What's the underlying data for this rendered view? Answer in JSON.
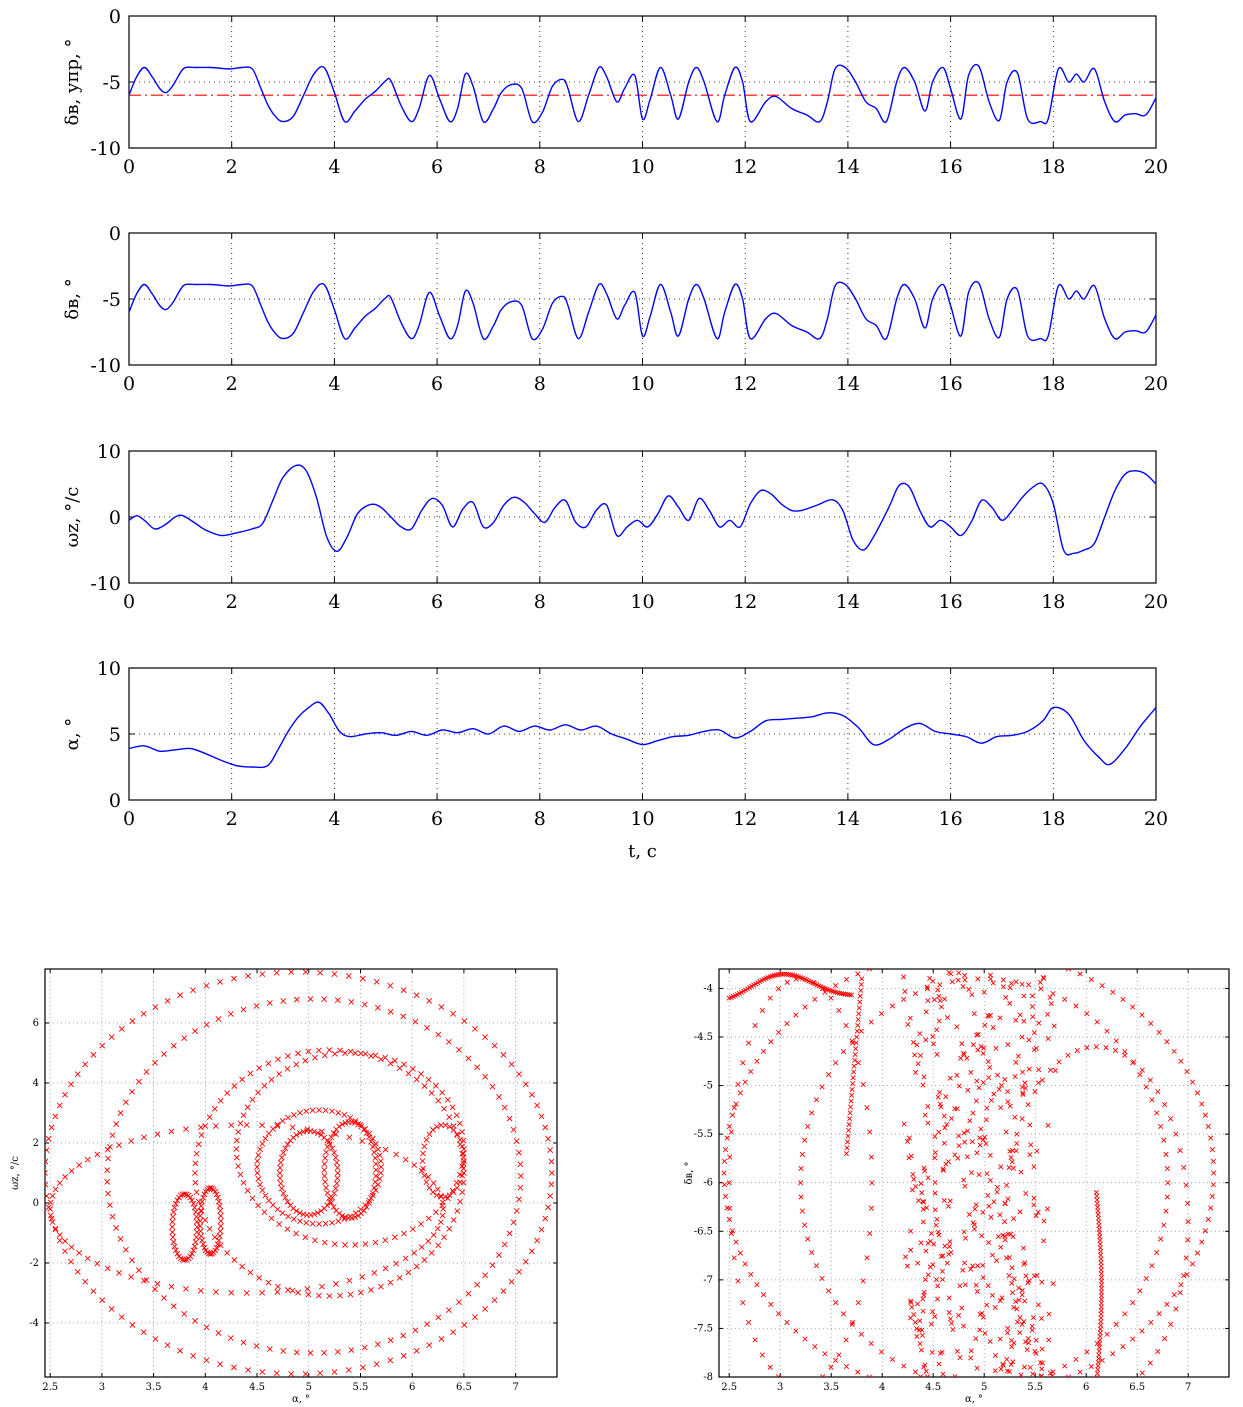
{
  "colors": {
    "line": "#0000ff",
    "reference": "#ff0000",
    "scatter": "#ff0000",
    "axis": "#000000"
  },
  "chart_data": [
    {
      "type": "line",
      "ylabel": "δв, упр, °",
      "ylim": [
        -10,
        0
      ],
      "yticks": [
        0,
        -5,
        -10
      ],
      "ytick_labels": [
        "0",
        "-5",
        "-10"
      ],
      "xlim": [
        0,
        20
      ],
      "xticks": [
        0,
        2,
        4,
        6,
        8,
        10,
        12,
        14,
        16,
        18,
        20
      ],
      "xtick_labels": [
        "0",
        "2",
        "4",
        "6",
        "8",
        "10",
        "12",
        "14",
        "16",
        "18",
        "20"
      ],
      "grid": true,
      "reference_line": {
        "y": -6,
        "style": "dash-dot"
      },
      "series": [
        {
          "x": [
            0,
            0.15,
            0.3,
            0.45,
            0.6,
            0.72,
            0.85,
            1.0,
            1.1,
            1.3,
            1.6,
            1.9,
            2.0,
            2.2,
            2.4,
            2.55,
            2.7,
            2.85,
            3.0,
            3.2,
            3.4,
            3.6,
            3.8,
            4.0,
            4.2,
            4.4,
            4.6,
            4.8,
            5.0,
            5.1,
            5.3,
            5.5,
            5.65,
            5.85,
            6.05,
            6.25,
            6.4,
            6.55,
            6.7,
            6.9,
            7.1,
            7.25,
            7.45,
            7.65,
            7.85,
            8.05,
            8.25,
            8.45,
            8.55,
            8.75,
            8.95,
            9.15,
            9.3,
            9.5,
            9.65,
            9.85,
            10.0,
            10.15,
            10.35,
            10.55,
            10.7,
            10.9,
            11.05,
            11.2,
            11.45,
            11.6,
            11.8,
            11.95,
            12.1,
            12.4,
            12.6,
            12.9,
            13.2,
            13.45,
            13.6,
            13.75,
            13.95,
            14.15,
            14.35,
            14.55,
            14.75,
            14.95,
            15.1,
            15.3,
            15.5,
            15.65,
            15.85,
            16.0,
            16.2,
            16.35,
            16.55,
            16.75,
            16.95,
            17.1,
            17.3,
            17.5,
            17.75,
            17.9,
            18.1,
            18.3,
            18.45,
            18.6,
            18.8,
            19.0,
            19.2,
            19.4,
            19.6,
            19.8,
            20.0
          ],
          "y": [
            -6.0,
            -4.6,
            -3.9,
            -4.6,
            -5.5,
            -5.8,
            -5.3,
            -4.3,
            -3.9,
            -3.9,
            -3.9,
            -4.0,
            -4.0,
            -3.9,
            -4.0,
            -5.3,
            -6.7,
            -7.6,
            -8.0,
            -7.6,
            -6.0,
            -4.4,
            -3.9,
            -5.8,
            -8.0,
            -7.2,
            -6.3,
            -5.7,
            -4.9,
            -4.9,
            -6.8,
            -8.0,
            -7.0,
            -4.5,
            -6.3,
            -8.0,
            -7.0,
            -4.4,
            -5.3,
            -8.0,
            -7.0,
            -5.8,
            -5.2,
            -5.5,
            -8.0,
            -7.3,
            -5.3,
            -4.8,
            -5.5,
            -8.0,
            -6.0,
            -3.9,
            -4.6,
            -6.5,
            -5.5,
            -4.5,
            -7.8,
            -6.3,
            -3.9,
            -6.0,
            -7.8,
            -5.0,
            -3.9,
            -5.0,
            -8.0,
            -6.0,
            -3.9,
            -5.0,
            -8.0,
            -6.5,
            -6.1,
            -7.0,
            -7.5,
            -8.0,
            -6.5,
            -4.0,
            -3.9,
            -5.0,
            -6.5,
            -7.0,
            -8.0,
            -5.0,
            -3.9,
            -5.0,
            -7.2,
            -5.0,
            -3.9,
            -5.5,
            -7.8,
            -4.5,
            -3.8,
            -6.5,
            -7.9,
            -5.0,
            -4.3,
            -7.8,
            -8.0,
            -7.8,
            -4.0,
            -5.0,
            -4.4,
            -5.0,
            -4.0,
            -6.5,
            -8.0,
            -7.5,
            -7.4,
            -7.5,
            -6.2
          ]
        }
      ]
    },
    {
      "type": "line",
      "ylabel": "δв, °",
      "ylim": [
        -10,
        0
      ],
      "yticks": [
        0,
        -5,
        -10
      ],
      "ytick_labels": [
        "0",
        "-5",
        "-10"
      ],
      "xlim": [
        0,
        20
      ],
      "xticks": [
        0,
        2,
        4,
        6,
        8,
        10,
        12,
        14,
        16,
        18,
        20
      ],
      "xtick_labels": [
        "0",
        "2",
        "4",
        "6",
        "8",
        "10",
        "12",
        "14",
        "16",
        "18",
        "20"
      ],
      "grid": true,
      "series": [
        {
          "x": [
            0,
            0.15,
            0.3,
            0.45,
            0.6,
            0.72,
            0.85,
            1.0,
            1.1,
            1.3,
            1.6,
            1.9,
            2.0,
            2.2,
            2.4,
            2.55,
            2.7,
            2.85,
            3.0,
            3.2,
            3.4,
            3.6,
            3.8,
            4.0,
            4.2,
            4.4,
            4.6,
            4.8,
            5.0,
            5.1,
            5.3,
            5.5,
            5.65,
            5.85,
            6.05,
            6.25,
            6.4,
            6.55,
            6.7,
            6.9,
            7.1,
            7.25,
            7.45,
            7.65,
            7.85,
            8.05,
            8.25,
            8.45,
            8.55,
            8.75,
            8.95,
            9.15,
            9.3,
            9.5,
            9.65,
            9.85,
            10.0,
            10.15,
            10.35,
            10.55,
            10.7,
            10.9,
            11.05,
            11.2,
            11.45,
            11.6,
            11.8,
            11.95,
            12.1,
            12.4,
            12.6,
            12.9,
            13.2,
            13.45,
            13.6,
            13.75,
            13.95,
            14.15,
            14.35,
            14.55,
            14.75,
            14.95,
            15.1,
            15.3,
            15.5,
            15.65,
            15.85,
            16.0,
            16.2,
            16.35,
            16.55,
            16.75,
            16.95,
            17.1,
            17.3,
            17.5,
            17.75,
            17.9,
            18.1,
            18.3,
            18.45,
            18.6,
            18.8,
            19.0,
            19.2,
            19.4,
            19.6,
            19.8,
            20.0
          ],
          "y": [
            -6.0,
            -4.6,
            -3.9,
            -4.6,
            -5.5,
            -5.8,
            -5.3,
            -4.3,
            -3.9,
            -3.9,
            -3.9,
            -4.0,
            -4.0,
            -3.9,
            -4.0,
            -5.3,
            -6.7,
            -7.6,
            -8.0,
            -7.6,
            -6.0,
            -4.4,
            -3.9,
            -5.8,
            -8.0,
            -7.2,
            -6.3,
            -5.7,
            -4.9,
            -4.9,
            -6.8,
            -8.0,
            -7.0,
            -4.5,
            -6.3,
            -8.0,
            -7.0,
            -4.4,
            -5.3,
            -8.0,
            -7.0,
            -5.8,
            -5.2,
            -5.5,
            -8.0,
            -7.3,
            -5.3,
            -4.8,
            -5.5,
            -8.0,
            -6.0,
            -3.9,
            -4.6,
            -6.5,
            -5.5,
            -4.5,
            -7.8,
            -6.3,
            -3.9,
            -6.0,
            -7.8,
            -5.0,
            -3.9,
            -5.0,
            -8.0,
            -6.0,
            -3.9,
            -5.0,
            -8.0,
            -6.5,
            -6.1,
            -7.0,
            -7.5,
            -8.0,
            -6.5,
            -4.0,
            -3.9,
            -5.0,
            -6.5,
            -7.0,
            -8.0,
            -5.0,
            -3.9,
            -5.0,
            -7.2,
            -5.0,
            -3.9,
            -5.5,
            -7.8,
            -4.5,
            -3.8,
            -6.5,
            -7.9,
            -5.0,
            -4.3,
            -7.8,
            -8.0,
            -7.8,
            -4.0,
            -5.0,
            -4.4,
            -5.0,
            -4.0,
            -6.5,
            -8.0,
            -7.5,
            -7.4,
            -7.5,
            -6.2
          ]
        }
      ]
    },
    {
      "type": "line",
      "ylabel": "ωz, °/c",
      "ylim": [
        -10,
        10
      ],
      "yticks": [
        10,
        0,
        -10
      ],
      "ytick_labels": [
        "10",
        "0",
        "-10"
      ],
      "xlim": [
        0,
        20
      ],
      "xticks": [
        0,
        2,
        4,
        6,
        8,
        10,
        12,
        14,
        16,
        18,
        20
      ],
      "xtick_labels": [
        "0",
        "2",
        "4",
        "6",
        "8",
        "10",
        "12",
        "14",
        "16",
        "18",
        "20"
      ],
      "grid": true,
      "series": [
        {
          "x": [
            0,
            0.15,
            0.3,
            0.5,
            0.7,
            0.9,
            1.05,
            1.3,
            1.5,
            1.8,
            2.1,
            2.4,
            2.6,
            2.8,
            3.0,
            3.25,
            3.45,
            3.65,
            3.85,
            4.05,
            4.25,
            4.45,
            4.7,
            4.9,
            5.1,
            5.3,
            5.5,
            5.7,
            5.9,
            6.1,
            6.3,
            6.5,
            6.7,
            6.9,
            7.1,
            7.3,
            7.5,
            7.7,
            7.9,
            8.1,
            8.3,
            8.5,
            8.7,
            8.9,
            9.1,
            9.3,
            9.5,
            9.7,
            9.9,
            10.1,
            10.3,
            10.5,
            10.7,
            10.9,
            11.1,
            11.3,
            11.5,
            11.7,
            11.9,
            12.1,
            12.3,
            12.5,
            12.7,
            12.9,
            13.1,
            13.4,
            13.7,
            13.9,
            14.1,
            14.3,
            14.5,
            14.8,
            15.0,
            15.2,
            15.4,
            15.6,
            15.8,
            16.0,
            16.2,
            16.4,
            16.6,
            16.8,
            17.0,
            17.2,
            17.4,
            17.6,
            17.8,
            18.0,
            18.2,
            18.4,
            18.6,
            18.8,
            19.0,
            19.2,
            19.4,
            19.6,
            19.8,
            20.0
          ],
          "y": [
            -0.5,
            0.2,
            -0.5,
            -1.8,
            -1.2,
            0.0,
            0.2,
            -1.0,
            -2.0,
            -2.8,
            -2.4,
            -1.8,
            -1.0,
            2.5,
            6.0,
            7.8,
            7.0,
            3.0,
            -3.0,
            -5.2,
            -3.0,
            0.5,
            1.9,
            1.5,
            0.0,
            -1.5,
            -1.8,
            1.0,
            2.8,
            1.8,
            -1.5,
            1.2,
            2.2,
            -1.5,
            -0.8,
            1.8,
            3.0,
            2.2,
            0.5,
            -0.8,
            1.5,
            2.5,
            -0.8,
            -1.5,
            1.0,
            1.8,
            -2.8,
            -1.5,
            -0.5,
            -1.5,
            0.5,
            3.2,
            1.5,
            -0.5,
            2.8,
            1.0,
            -1.5,
            -0.5,
            -1.5,
            2.0,
            4.0,
            3.5,
            2.0,
            1.0,
            1.0,
            1.8,
            2.6,
            1.0,
            -3.5,
            -5.0,
            -3.0,
            1.5,
            4.8,
            4.5,
            1.0,
            -1.5,
            -0.5,
            -1.5,
            -2.8,
            -0.8,
            2.5,
            1.5,
            -0.5,
            1.0,
            3.0,
            4.5,
            5.0,
            2.0,
            -5.0,
            -5.5,
            -5.0,
            -4.0,
            0.0,
            4.0,
            6.5,
            7.0,
            6.5,
            5.0
          ]
        }
      ]
    },
    {
      "type": "line",
      "ylabel": "α, °",
      "xlabel": "t, c",
      "ylim": [
        0,
        10
      ],
      "yticks": [
        10,
        5,
        0
      ],
      "ytick_labels": [
        "10",
        "5",
        "0"
      ],
      "xlim": [
        0,
        20
      ],
      "xticks": [
        0,
        2,
        4,
        6,
        8,
        10,
        12,
        14,
        16,
        18,
        20
      ],
      "xtick_labels": [
        "0",
        "2",
        "4",
        "6",
        "8",
        "10",
        "12",
        "14",
        "16",
        "18",
        "20"
      ],
      "grid": true,
      "series": [
        {
          "x": [
            0,
            0.3,
            0.6,
            0.9,
            1.2,
            1.5,
            1.8,
            2.1,
            2.4,
            2.7,
            2.9,
            3.1,
            3.3,
            3.5,
            3.7,
            3.9,
            4.1,
            4.3,
            4.6,
            4.9,
            5.2,
            5.5,
            5.8,
            6.1,
            6.4,
            6.7,
            7.0,
            7.3,
            7.6,
            7.9,
            8.2,
            8.5,
            8.8,
            9.1,
            9.4,
            9.7,
            10.0,
            10.3,
            10.6,
            10.9,
            11.2,
            11.5,
            11.8,
            12.1,
            12.4,
            12.7,
            13.0,
            13.3,
            13.6,
            13.9,
            14.2,
            14.5,
            14.8,
            15.1,
            15.4,
            15.7,
            16.0,
            16.3,
            16.6,
            16.9,
            17.2,
            17.5,
            17.8,
            18.0,
            18.3,
            18.6,
            18.9,
            19.1,
            19.4,
            19.7,
            20.0
          ],
          "y": [
            3.9,
            4.1,
            3.7,
            3.8,
            3.9,
            3.5,
            3.0,
            2.6,
            2.5,
            2.6,
            3.8,
            5.2,
            6.3,
            7.0,
            7.4,
            6.5,
            5.2,
            4.8,
            5.0,
            5.1,
            4.9,
            5.2,
            4.9,
            5.3,
            5.1,
            5.4,
            5.0,
            5.6,
            5.2,
            5.6,
            5.3,
            5.7,
            5.3,
            5.6,
            5.0,
            4.6,
            4.2,
            4.5,
            4.8,
            4.9,
            5.2,
            5.3,
            4.7,
            5.2,
            6.0,
            6.1,
            6.2,
            6.3,
            6.6,
            6.4,
            5.5,
            4.2,
            4.6,
            5.4,
            5.8,
            5.2,
            5.0,
            4.8,
            4.3,
            4.8,
            4.9,
            5.2,
            6.0,
            7.0,
            6.5,
            4.5,
            3.2,
            2.7,
            3.9,
            5.6,
            7.0
          ]
        }
      ]
    },
    {
      "type": "scatter",
      "xlabel": "α, °",
      "ylabel": "ωz, °/c",
      "xlim": [
        2.45,
        7.4
      ],
      "ylim": [
        -5.8,
        7.8
      ],
      "xticks": [
        2.5,
        3,
        3.5,
        4,
        4.5,
        5,
        5.5,
        6,
        6.5,
        7
      ],
      "xtick_labels": [
        "2.5",
        "3",
        "3.5",
        "4",
        "4.5",
        "5",
        "5.5",
        "6",
        "6.5",
        "7"
      ],
      "yticks": [
        6,
        4,
        2,
        0,
        -2,
        -4
      ],
      "ytick_labels": [
        "6",
        "4",
        "2",
        "0",
        "-2",
        "-4"
      ],
      "grid": true,
      "marker": "x"
    },
    {
      "type": "scatter",
      "xlabel": "α, °",
      "ylabel": "δв, °",
      "xlim": [
        2.4,
        7.4
      ],
      "ylim": [
        -8,
        -3.8
      ],
      "xticks": [
        2.5,
        3,
        3.5,
        4,
        4.5,
        5,
        5.5,
        6,
        6.5,
        7
      ],
      "xtick_labels": [
        "2.5",
        "3",
        "3.5",
        "4",
        "4.5",
        "5",
        "5.5",
        "6",
        "6.5",
        "7"
      ],
      "yticks": [
        -4,
        -4.5,
        -5,
        -5.5,
        -6,
        -6.5,
        -7,
        -7.5,
        -8
      ],
      "ytick_labels": [
        "-4",
        "-4.5",
        "-5",
        "-5.5",
        "-6",
        "-6.5",
        "-7",
        "-7.5",
        "-8"
      ],
      "grid": true,
      "marker": "x"
    }
  ]
}
